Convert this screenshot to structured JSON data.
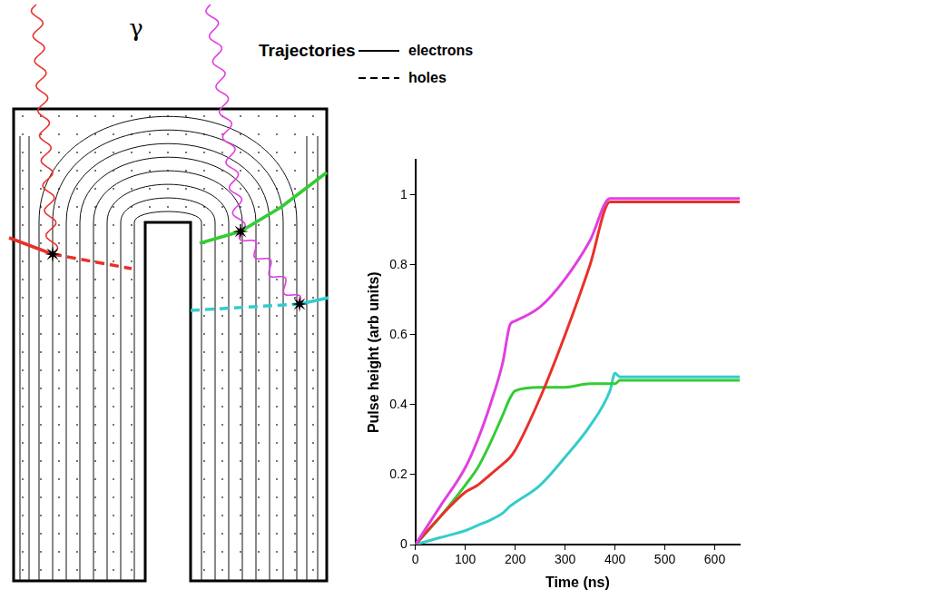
{
  "diagram": {
    "photon_label": "γ",
    "trajectory_key": {
      "title": "Trajectories",
      "items": [
        {
          "label": "electrons",
          "line_style": "solid"
        },
        {
          "label": "holes",
          "line_style": "dashed"
        }
      ]
    }
  },
  "chart_data": {
    "type": "line",
    "x_label": "Time (ns)",
    "y_label": "Pulse height (arb units)",
    "x": [
      0,
      50,
      100,
      125,
      150,
      175,
      190,
      200,
      250,
      300,
      350,
      390,
      400,
      410,
      500,
      650
    ],
    "series": [
      {
        "color": "#e040e0",
        "values": [
          0,
          0.11,
          0.22,
          0.3,
          0.4,
          0.52,
          0.63,
          0.64,
          0.68,
          0.76,
          0.87,
          0.99,
          0.99,
          0.99,
          0.99,
          0.99
        ]
      },
      {
        "color": "#e8312a",
        "values": [
          0,
          0.08,
          0.15,
          0.17,
          0.2,
          0.23,
          0.25,
          0.27,
          0.42,
          0.6,
          0.8,
          0.98,
          0.98,
          0.98,
          0.98,
          0.98
        ]
      },
      {
        "color": "#33cc33",
        "values": [
          0,
          0.08,
          0.17,
          0.22,
          0.29,
          0.37,
          0.42,
          0.44,
          0.45,
          0.45,
          0.46,
          0.46,
          0.46,
          0.47,
          0.47,
          0.47
        ]
      },
      {
        "color": "#33cccc",
        "values": [
          0,
          0.02,
          0.04,
          0.055,
          0.07,
          0.09,
          0.11,
          0.12,
          0.17,
          0.25,
          0.34,
          0.44,
          0.49,
          0.48,
          0.48,
          0.48
        ]
      }
    ],
    "xlim": [
      0,
      650
    ],
    "xticks": [
      0,
      100,
      200,
      300,
      400,
      500,
      600
    ],
    "ylim": [
      0,
      1.1
    ],
    "yticks": [
      0,
      0.2,
      0.4,
      0.6,
      0.8,
      1
    ],
    "grid": false
  }
}
